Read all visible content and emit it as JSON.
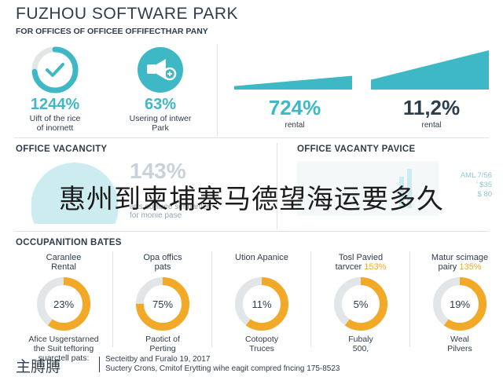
{
  "header": {
    "title": "FUZHOU SOFTWARE PARK",
    "subtitle": "FOR OFFICES OF OFFICEE OFFIFECTHAR PANY"
  },
  "kpis": [
    {
      "icon": "check-circle-icon",
      "value": "1244%",
      "label_line1": "Uift of the rice",
      "label_line2": "of inornett"
    },
    {
      "icon": "megaphone-icon",
      "value": "63%",
      "label_line1": "Usering of intwer",
      "label_line2": "Park"
    }
  ],
  "bars": [
    {
      "value": "724%",
      "label": "rental",
      "color": "#3fb8c6",
      "fill": 0.35
    },
    {
      "value": "11,2%",
      "label": "rental",
      "color": "#2e3d4b",
      "fill": 1.0
    }
  ],
  "vacancy": {
    "heading": "OFFICE VACANCITY",
    "big_number": "143%",
    "note_line1": "arts oonicee sennanter",
    "note_line2": "for monie pase"
  },
  "vacancy_price": {
    "heading": "OFFICE VACANTY PAVICE",
    "note_line1": "AML 7/56",
    "note_line2": "’ $35",
    "note_line3": "$ 80"
  },
  "overlay_text": "惠州到柬埔寨马德望海运要多久",
  "occupation": {
    "heading": "OCCUPANITION BATES",
    "cards": [
      {
        "cap1": "Caranlee",
        "cap2": "Rental",
        "cap2_pct": "",
        "value": "23%",
        "fill": 0.23,
        "foot1": "Afice Usgerstarned",
        "foot2": "the Suit teftoring",
        "foot3": "suarctell pats:"
      },
      {
        "cap1": "Opa offics",
        "cap2": "pats",
        "cap2_pct": "",
        "value": "75%",
        "fill": 0.75,
        "foot1": "Paotict of",
        "foot2": "Perting",
        "foot3": ""
      },
      {
        "cap1": "Ution Apanice",
        "cap2": "",
        "cap2_pct": "",
        "value": "11%",
        "fill": 0.11,
        "foot1": "Cotopoty",
        "foot2": "Truces",
        "foot3": ""
      },
      {
        "cap1": "Tosl Pavied",
        "cap2": "tarvcer ",
        "cap2_pct": "153%",
        "value": "5%",
        "fill": 0.05,
        "foot1": "Fubaly",
        "foot2": "500,",
        "foot3": ""
      },
      {
        "cap1": "Matur scimage",
        "cap2": "pairy ",
        "cap2_pct": "135%",
        "value": "19%",
        "fill": 0.19,
        "foot1": "Weal",
        "foot2": "Pilvers",
        "foot3": ""
      }
    ]
  },
  "footer": {
    "logo": "主膊膊",
    "line1": "Secteitby and Furalo 19, 2017",
    "line2": "Suctery Crons, Cmitof Erytting wihe eagit compred fncing 175-8523"
  },
  "colors": {
    "teal": "#3fb8c6",
    "orange": "#f3a928",
    "ring_bg": "#e3e6e8",
    "dark": "#2e3d4b"
  }
}
